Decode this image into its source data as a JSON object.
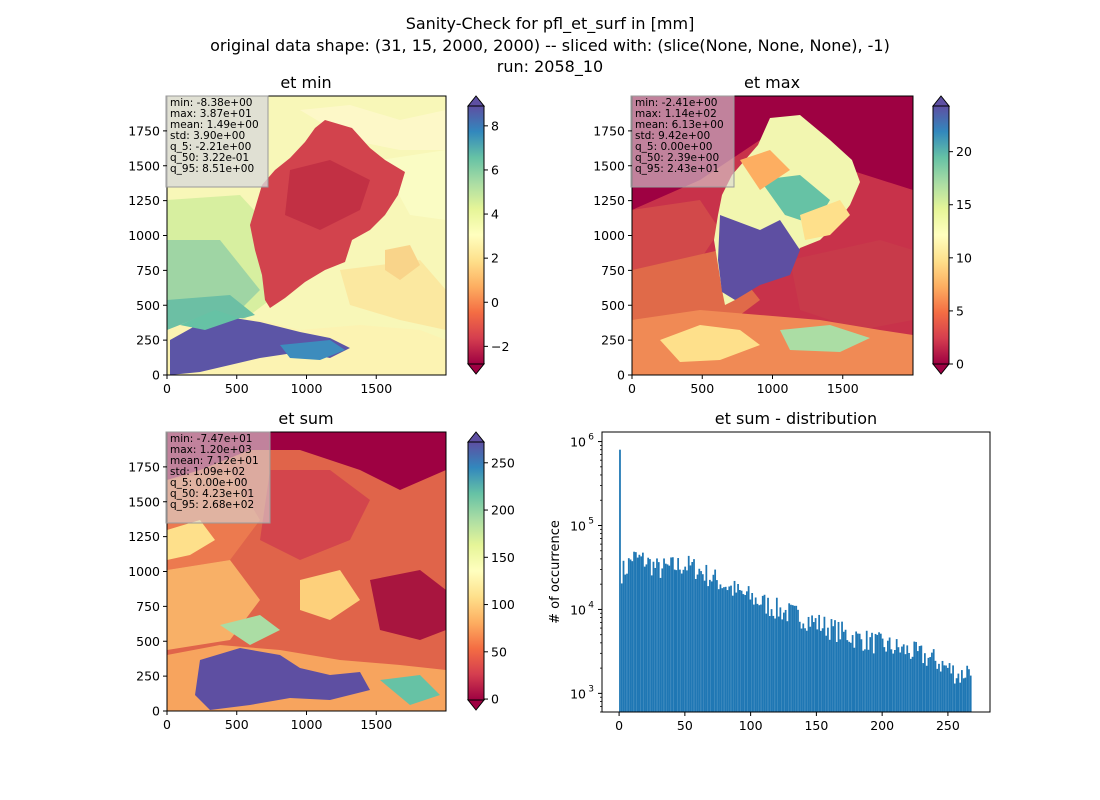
{
  "figure": {
    "title_lines": [
      "Sanity-Check for pfl_et_surf in [mm]",
      "original data shape: (31, 15, 2000, 2000) -- sliced with: (slice(None, None, None), -1)",
      "run: 2058_10"
    ]
  },
  "chart_data": [
    {
      "type": "heatmap",
      "title": "et min",
      "colormap": "Spectral",
      "xlim": [
        0,
        2000
      ],
      "ylim": [
        0,
        2000
      ],
      "x_ticks": [
        0,
        500,
        1000,
        1500
      ],
      "y_ticks": [
        0,
        250,
        500,
        750,
        1000,
        1250,
        1500,
        1750
      ],
      "colorbar": {
        "range": [
          -2.8,
          8.9
        ],
        "ticks": [
          -2,
          0,
          2,
          4,
          6,
          8
        ],
        "extend": "both"
      },
      "stats": [
        "min: -8.38e+00",
        "max: 3.87e+01",
        "mean: 1.49e+00",
        "std: 3.90e+00",
        "q_5: -2.21e+00",
        "q_50: 3.22e-01",
        "q_95: 8.51e+00"
      ],
      "stats_box_color": "#d9d9d9"
    },
    {
      "type": "heatmap",
      "title": "et max",
      "colormap": "Spectral",
      "xlim": [
        0,
        2000
      ],
      "ylim": [
        0,
        2000
      ],
      "x_ticks": [
        0,
        500,
        1000,
        1500
      ],
      "y_ticks": [
        0,
        250,
        500,
        750,
        1000,
        1250,
        1500,
        1750
      ],
      "colorbar": {
        "range": [
          0,
          24.3
        ],
        "ticks": [
          0,
          5,
          10,
          15,
          20
        ],
        "extend": "both"
      },
      "stats": [
        "min: -2.41e+00",
        "max: 1.14e+02",
        "mean: 6.13e+00",
        "std: 9.42e+00",
        "q_5: 0.00e+00",
        "q_50: 2.39e+00",
        "q_95: 2.43e+01"
      ],
      "stats_box_color": "#d9d9d9"
    },
    {
      "type": "heatmap",
      "title": "et sum",
      "colormap": "Spectral",
      "xlim": [
        0,
        2000
      ],
      "ylim": [
        0,
        2000
      ],
      "x_ticks": [
        0,
        500,
        1000,
        1500
      ],
      "y_ticks": [
        0,
        250,
        500,
        750,
        1000,
        1250,
        1500,
        1750
      ],
      "colorbar": {
        "range": [
          -1,
          272
        ],
        "ticks": [
          0,
          50,
          100,
          150,
          200,
          250
        ],
        "extend": "both"
      },
      "stats": [
        "min: -7.47e+01",
        "max: 1.20e+03",
        "mean: 7.12e+01",
        "std: 1.09e+02",
        "q_5: 0.00e+00",
        "q_50: 4.23e+01",
        "q_95: 2.68e+02"
      ],
      "stats_box_color": "#d9d9d9"
    },
    {
      "type": "bar",
      "title": "et sum - distribution",
      "ylabel": "# of occurrence",
      "xlabel": "",
      "y_scale": "log",
      "xlim": [
        -13,
        282
      ],
      "ylim": [
        600,
        1300000
      ],
      "x_ticks": [
        0,
        50,
        100,
        150,
        200,
        250
      ],
      "y_ticks": [
        1000,
        10000,
        100000,
        1000000
      ],
      "y_tick_labels": [
        [
          "10",
          "3"
        ],
        [
          "10",
          "4"
        ],
        [
          "10",
          "5"
        ],
        [
          "10",
          "6"
        ]
      ],
      "bar_color": "#1f77b4",
      "bins": {
        "start": 0,
        "width": 1.34,
        "count": 200
      },
      "spike": {
        "x": 0,
        "value": 800000
      },
      "envelope_x": [
        0,
        5,
        10,
        20,
        30,
        40,
        50,
        60,
        70,
        80,
        90,
        100,
        120,
        140,
        160,
        180,
        200,
        220,
        240,
        260,
        268
      ],
      "envelope_y": [
        27000,
        30000,
        42000,
        38000,
        30000,
        32000,
        34000,
        30000,
        24000,
        20000,
        16000,
        14000,
        10000,
        8000,
        6000,
        4600,
        3800,
        3200,
        2500,
        1600,
        2200
      ]
    }
  ]
}
